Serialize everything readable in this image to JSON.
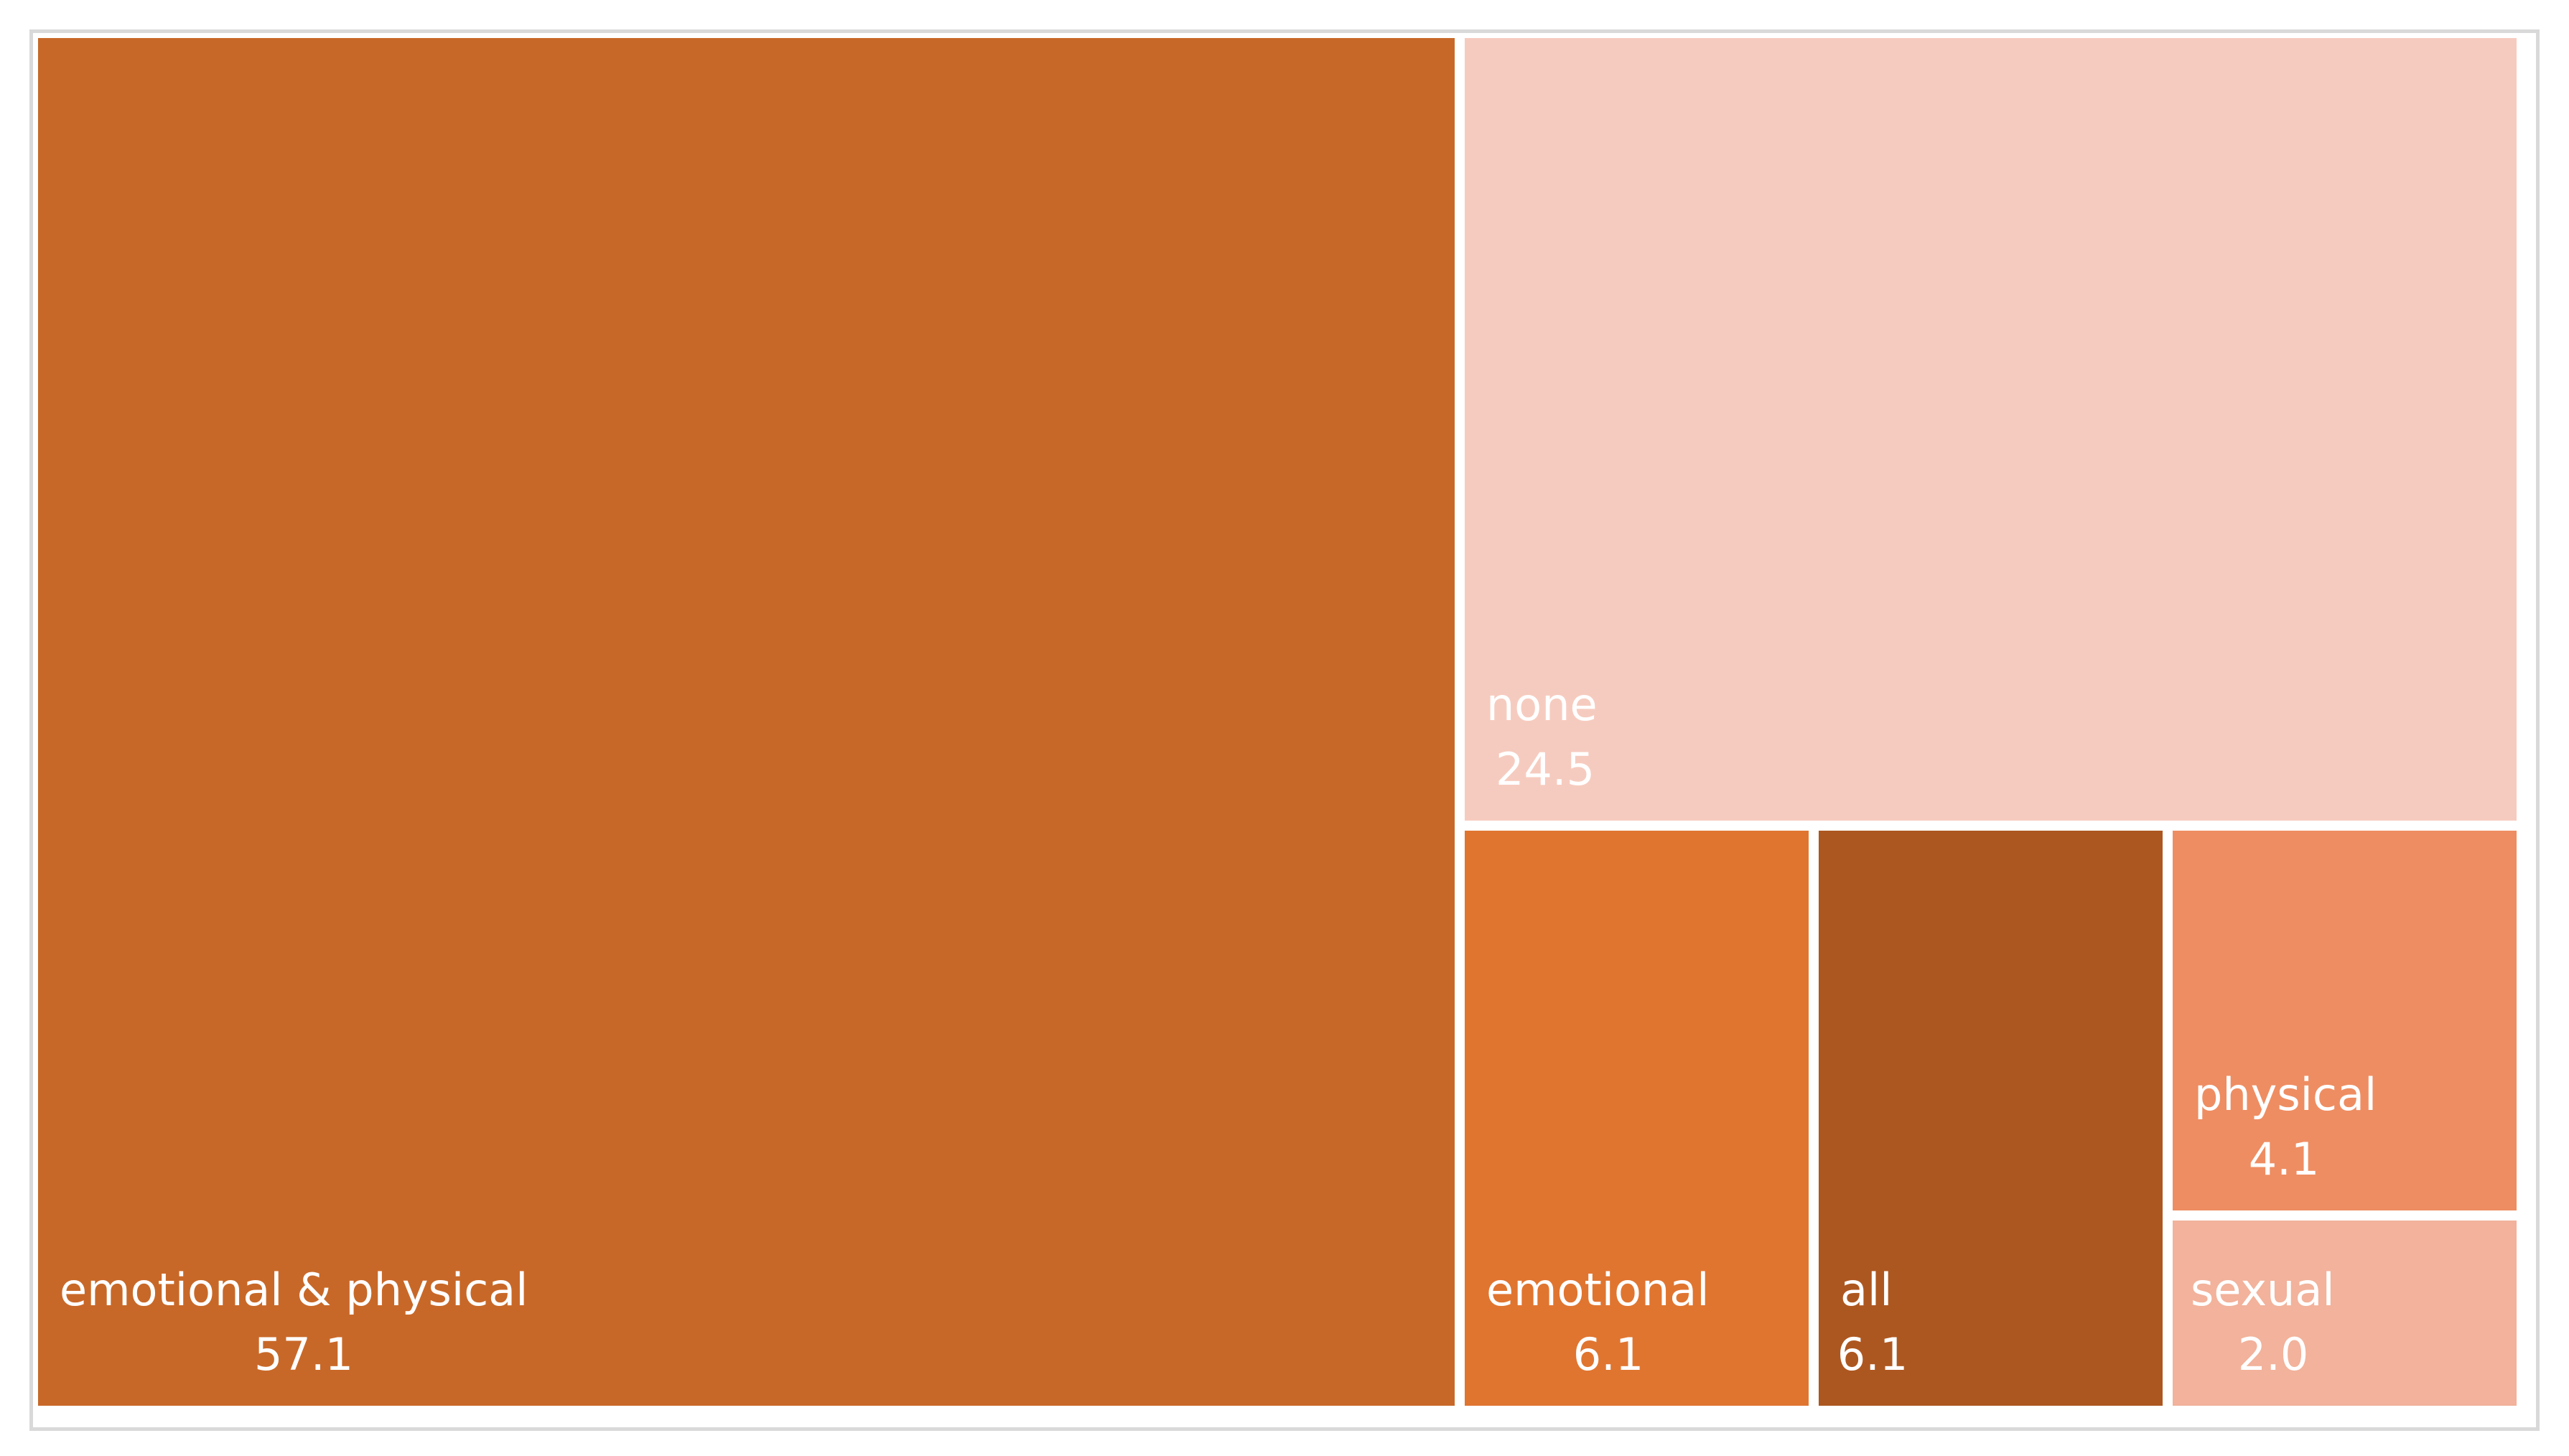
{
  "chart_data": {
    "type": "treemap",
    "title": "",
    "items": [
      {
        "label": "emotional & physical",
        "value": 57.1,
        "display": "57.1",
        "color": "#c86828"
      },
      {
        "label": "none",
        "value": 24.5,
        "display": "24.5",
        "color": "#f6cbbf"
      },
      {
        "label": "emotional",
        "value": 6.1,
        "display": "6.1",
        "color": "#e07530"
      },
      {
        "label": "all",
        "value": 6.1,
        "display": "6.1",
        "color": "#ad5720"
      },
      {
        "label": "physical",
        "value": 4.1,
        "display": "4.1",
        "color": "#ee8d62"
      },
      {
        "label": "sexual",
        "value": 2.0,
        "display": "2.0",
        "color": "#f2b29b"
      }
    ]
  }
}
